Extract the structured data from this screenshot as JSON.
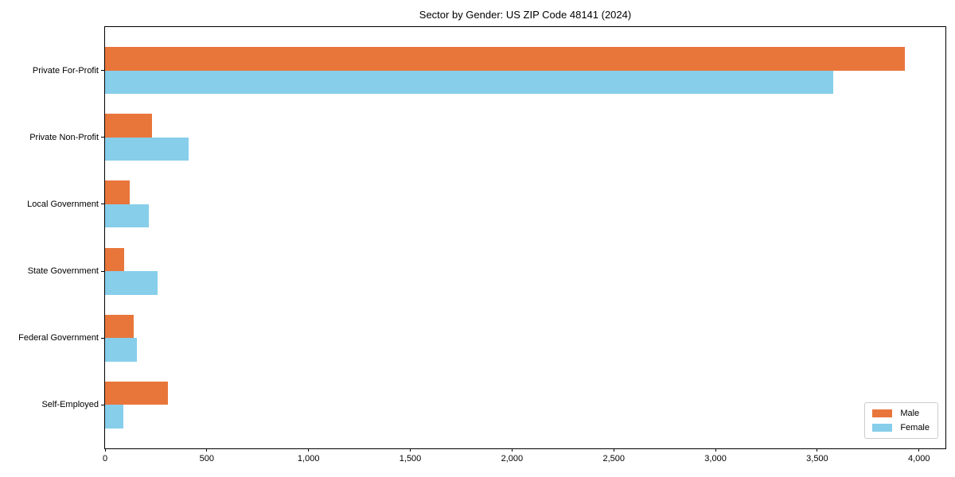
{
  "figure": {
    "title": "Sector by Gender: US ZIP Code 48141 (2024)"
  },
  "chart_data": {
    "type": "bar",
    "orientation": "horizontal",
    "title": "Sector by Gender: US ZIP Code 48141 (2024)",
    "categories": [
      "Private For-Profit",
      "Private Non-Profit",
      "Local Government",
      "State Government",
      "Federal Government",
      "Self-Employed"
    ],
    "series": [
      {
        "name": "Male",
        "color": "#e8763b",
        "values": [
          3930,
          230,
          120,
          95,
          140,
          310
        ]
      },
      {
        "name": "Female",
        "color": "#87ceeb",
        "values": [
          3580,
          410,
          215,
          260,
          155,
          90
        ]
      }
    ],
    "xlabel": "",
    "ylabel": "",
    "xlim": [
      0,
      4130
    ],
    "x_ticks": [
      0,
      500,
      1000,
      1500,
      2000,
      2500,
      3000,
      3500,
      4000
    ],
    "x_tick_labels": [
      "0",
      "500",
      "1,000",
      "1,500",
      "2,000",
      "2,500",
      "3,000",
      "3,500",
      "4,000"
    ],
    "grid": false,
    "legend": {
      "position": "lower-right"
    },
    "colors": {
      "axis": "#000000",
      "background": "#ffffff",
      "legend_border": "#cccccc"
    }
  }
}
